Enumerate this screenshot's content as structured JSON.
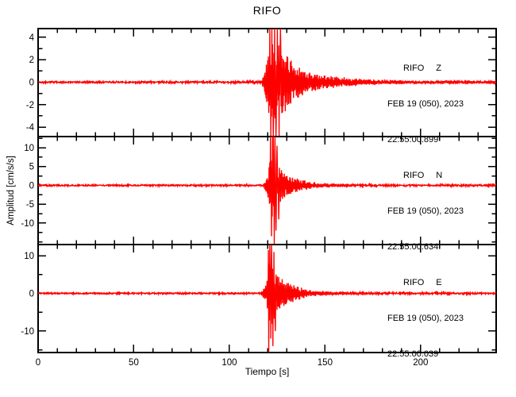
{
  "title": "RIFO",
  "chart_data": {
    "type": "line",
    "title": "RIFO",
    "xlabel": "Tiempo [s]",
    "ylabel": "Amplitud [cm/s/s]",
    "x_range": [
      0,
      239.5
    ],
    "x_major_ticks": [
      0,
      50,
      100,
      150,
      200
    ],
    "x_minor_step": 10,
    "trace_color": "#ff0000",
    "frame_color": "#000000",
    "panels": [
      {
        "station": "RIFO",
        "component": "Z",
        "date": "FEB 19 (050), 2023",
        "time": "22:55:00.899",
        "y_range": [
          -4.84,
          4.77
        ],
        "y_major_ticks": [
          -4,
          -2,
          0,
          2,
          4
        ],
        "y_minor_step": 1,
        "noise_amp": 0.07,
        "seed": 11,
        "envelope": [
          [
            0,
            0.0
          ],
          [
            116.5,
            0.05
          ],
          [
            118,
            0.7
          ],
          [
            119.5,
            1.8
          ],
          [
            121,
            3.3
          ],
          [
            126,
            3.4
          ],
          [
            128,
            2.8
          ],
          [
            131,
            2.2
          ],
          [
            135,
            1.5
          ],
          [
            140,
            1.0
          ],
          [
            146,
            0.7
          ],
          [
            153,
            0.5
          ],
          [
            162,
            0.35
          ],
          [
            172,
            0.25
          ],
          [
            185,
            0.17
          ],
          [
            205,
            0.12
          ],
          [
            239.5,
            0.09
          ]
        ],
        "spikes": [
          [
            121.2,
            4.77
          ],
          [
            121.7,
            -4.84
          ],
          [
            122.3,
            4.77
          ],
          [
            122.9,
            -4.84
          ],
          [
            123.6,
            4.77
          ],
          [
            124.3,
            -4.84
          ],
          [
            125.1,
            4.77
          ],
          [
            126.0,
            -4.84
          ],
          [
            126.8,
            4.77
          ]
        ]
      },
      {
        "station": "RIFO",
        "component": "N",
        "date": "FEB 19 (050), 2023",
        "time": "22:55:00.634",
        "y_range": [
          -15.7,
          12.95
        ],
        "y_major_ticks": [
          -10,
          -5,
          0,
          5,
          10
        ],
        "y_minor_step": 2.5,
        "noise_amp": 0.18,
        "seed": 23,
        "envelope": [
          [
            0,
            0.0
          ],
          [
            117.2,
            0.06
          ],
          [
            118.5,
            1.0
          ],
          [
            119.8,
            2.2
          ],
          [
            120.6,
            5
          ],
          [
            121.3,
            9
          ],
          [
            124,
            9.5
          ],
          [
            125.5,
            6
          ],
          [
            127.5,
            4
          ],
          [
            131,
            2.6
          ],
          [
            135,
            1.8
          ],
          [
            140,
            1.1
          ],
          [
            147,
            0.6
          ],
          [
            155,
            0.35
          ],
          [
            165,
            0.22
          ],
          [
            180,
            0.13
          ],
          [
            239.5,
            0.08
          ]
        ],
        "spikes": [
          [
            121.5,
            12.95
          ],
          [
            122.0,
            -13.5
          ],
          [
            122.5,
            12.95
          ],
          [
            123.0,
            12.95
          ],
          [
            123.4,
            -15.7
          ],
          [
            123.9,
            12.95
          ],
          [
            124.4,
            -12
          ],
          [
            125.0,
            10.5
          ],
          [
            125.8,
            -9
          ]
        ]
      },
      {
        "station": "RIFO",
        "component": "E",
        "date": "FEB 19 (050), 2023",
        "time": "22:55:00.039",
        "y_range": [
          -15.7,
          12.95
        ],
        "y_major_ticks": [
          -10,
          0,
          10
        ],
        "y_minor_step": 5,
        "noise_amp": 0.18,
        "seed": 37,
        "envelope": [
          [
            0,
            0.0
          ],
          [
            116.3,
            0.06
          ],
          [
            117.5,
            1.2
          ],
          [
            119,
            2.4
          ],
          [
            120,
            5.5
          ],
          [
            120.8,
            8.5
          ],
          [
            123.3,
            8.5
          ],
          [
            124.5,
            6
          ],
          [
            127,
            4.2
          ],
          [
            130,
            3
          ],
          [
            134,
            2
          ],
          [
            139,
            1.2
          ],
          [
            145,
            0.75
          ],
          [
            152,
            0.45
          ],
          [
            162,
            0.25
          ],
          [
            180,
            0.13
          ],
          [
            239.5,
            0.08
          ]
        ],
        "spikes": [
          [
            120.4,
            11.5
          ],
          [
            120.6,
            -15.7
          ],
          [
            121.1,
            12.9
          ],
          [
            121.6,
            -12
          ],
          [
            122.1,
            12.9
          ],
          [
            122.7,
            -14
          ],
          [
            123.3,
            11
          ],
          [
            124.0,
            -10
          ]
        ]
      }
    ]
  }
}
